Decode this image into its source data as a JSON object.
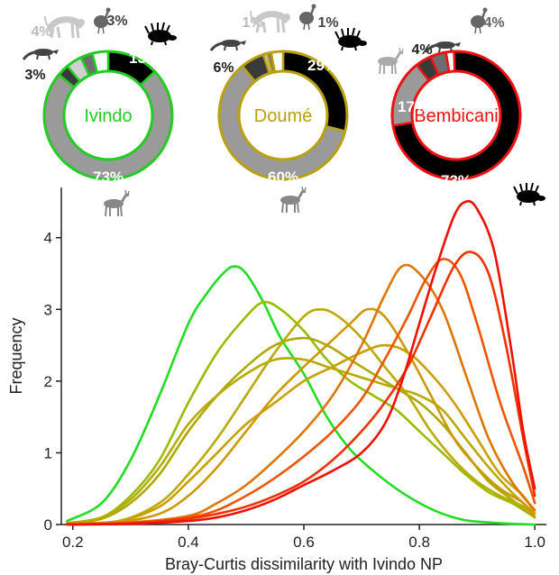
{
  "chart_data": [
    {
      "type": "pie",
      "style": "donut",
      "label": "Ivindo",
      "color": "#22cc22",
      "slices": [
        {
          "animal": "antelope-icon",
          "value": 73,
          "label": "73%",
          "fill": "#9a9a9a"
        },
        {
          "animal": "mongoose-icon",
          "value": 3,
          "label": "3%",
          "fill": "#3a3a3a"
        },
        {
          "animal": "primate-icon",
          "value": 4,
          "label": "4%",
          "fill": "#d0d0d0"
        },
        {
          "animal": "guineafowl-icon",
          "value": 3,
          "label": "3%",
          "fill": "#6e6e6e"
        },
        {
          "animal": "gap",
          "value": 4,
          "label": "",
          "fill": "#ffffff"
        },
        {
          "animal": "porcupine-icon",
          "value": 13,
          "label": "13%",
          "fill": "#000000"
        }
      ]
    },
    {
      "type": "pie",
      "style": "donut",
      "label": "Doumé",
      "color": "#b8a010",
      "slices": [
        {
          "animal": "antelope-icon",
          "value": 60,
          "label": "60%",
          "fill": "#9a9a9a"
        },
        {
          "animal": "mongoose-icon",
          "value": 6,
          "label": "6%",
          "fill": "#3a3a3a"
        },
        {
          "animal": "primate-icon",
          "value": 1,
          "label": "1%",
          "fill": "#d0d0d0"
        },
        {
          "animal": "guineafowl-icon",
          "value": 1,
          "label": "1%",
          "fill": "#6e6e6e"
        },
        {
          "animal": "gap",
          "value": 3,
          "label": "",
          "fill": "#ffffff"
        },
        {
          "animal": "porcupine-icon",
          "value": 29,
          "label": "29%",
          "fill": "#000000"
        }
      ]
    },
    {
      "type": "pie",
      "style": "donut",
      "label": "Bembicani",
      "color": "#ee1111",
      "slices": [
        {
          "animal": "porcupine-icon",
          "value": 73,
          "label": "73%",
          "fill": "#000000"
        },
        {
          "animal": "antelope-icon",
          "value": 17,
          "label": "17%",
          "fill": "#9a9a9a"
        },
        {
          "animal": "mongoose-icon",
          "value": 4,
          "label": "4%",
          "fill": "#3a3a3a"
        },
        {
          "animal": "guineafowl-icon",
          "value": 4,
          "label": "4%",
          "fill": "#6e6e6e"
        },
        {
          "animal": "gap",
          "value": 2,
          "label": "",
          "fill": "#ffffff"
        }
      ]
    },
    {
      "type": "line",
      "title": "",
      "xlabel": "Bray-Curtis dissimilarity with Ivindo NP",
      "ylabel": "Frequency",
      "xlim": [
        0.18,
        1.02
      ],
      "ylim": [
        0,
        4.7
      ],
      "xticks": [
        "0.2",
        "0.4",
        "0.6",
        "0.8",
        "1.0"
      ],
      "yticks": [
        "0",
        "1",
        "2",
        "3",
        "4"
      ],
      "grid": false,
      "legend": "none",
      "series": [
        {
          "color": "#22dd22",
          "x": [
            0.19,
            0.25,
            0.3,
            0.35,
            0.4,
            0.43,
            0.46,
            0.48,
            0.5,
            0.53,
            0.56,
            0.6,
            0.64,
            0.68,
            0.72,
            0.76,
            0.8,
            0.84,
            0.88,
            0.92,
            0.96,
            1.0
          ],
          "y": [
            0.05,
            0.3,
            0.9,
            1.8,
            2.8,
            3.2,
            3.5,
            3.6,
            3.5,
            3.1,
            2.6,
            2.1,
            1.5,
            1.05,
            0.75,
            0.5,
            0.3,
            0.15,
            0.06,
            0.03,
            0.01,
            0
          ]
        },
        {
          "color": "#99bb00",
          "x": [
            0.19,
            0.25,
            0.3,
            0.35,
            0.4,
            0.45,
            0.5,
            0.53,
            0.56,
            0.6,
            0.64,
            0.68,
            0.72,
            0.76,
            0.8,
            0.84,
            0.88,
            0.92,
            0.96,
            1.0
          ],
          "y": [
            0.02,
            0.1,
            0.4,
            0.9,
            1.7,
            2.4,
            2.9,
            3.1,
            3.0,
            2.7,
            2.3,
            2.0,
            1.8,
            1.6,
            1.3,
            1.0,
            0.7,
            0.45,
            0.3,
            0.1
          ]
        },
        {
          "color": "#aaaa00",
          "x": [
            0.19,
            0.25,
            0.3,
            0.35,
            0.4,
            0.45,
            0.5,
            0.55,
            0.6,
            0.64,
            0.68,
            0.72,
            0.76,
            0.8,
            0.84,
            0.88,
            0.92,
            0.96,
            1.0
          ],
          "y": [
            0.02,
            0.08,
            0.3,
            0.7,
            1.3,
            1.8,
            2.2,
            2.5,
            2.6,
            2.5,
            2.3,
            2.1,
            1.9,
            1.7,
            1.4,
            1.0,
            0.6,
            0.35,
            0.1
          ]
        },
        {
          "color": "#b8aa00",
          "x": [
            0.19,
            0.25,
            0.3,
            0.35,
            0.4,
            0.45,
            0.5,
            0.55,
            0.6,
            0.64,
            0.68,
            0.72,
            0.76,
            0.8,
            0.84,
            0.88,
            0.92,
            0.96,
            1.0
          ],
          "y": [
            0.02,
            0.1,
            0.35,
            0.8,
            1.4,
            1.8,
            2.1,
            2.3,
            2.3,
            2.2,
            2.1,
            2.0,
            1.9,
            1.8,
            1.6,
            1.2,
            0.8,
            0.45,
            0.15
          ]
        },
        {
          "color": "#bbaa00",
          "x": [
            0.19,
            0.28,
            0.35,
            0.4,
            0.45,
            0.5,
            0.55,
            0.6,
            0.63,
            0.66,
            0.7,
            0.74,
            0.78,
            0.82,
            0.86,
            0.9,
            0.94,
            0.98,
            1.0
          ],
          "y": [
            0.01,
            0.05,
            0.3,
            0.7,
            1.2,
            1.8,
            2.4,
            2.9,
            3.0,
            2.9,
            2.6,
            2.2,
            1.8,
            1.3,
            0.9,
            0.6,
            0.4,
            0.25,
            0.1
          ]
        },
        {
          "color": "#c9a000",
          "x": [
            0.19,
            0.28,
            0.35,
            0.4,
            0.45,
            0.5,
            0.55,
            0.6,
            0.65,
            0.7,
            0.74,
            0.78,
            0.82,
            0.86,
            0.9,
            0.94,
            0.98,
            1.0
          ],
          "y": [
            0.01,
            0.05,
            0.25,
            0.6,
            1.0,
            1.4,
            1.7,
            2.0,
            2.2,
            2.4,
            2.5,
            2.4,
            2.1,
            1.7,
            1.2,
            0.7,
            0.4,
            0.15
          ]
        },
        {
          "color": "#cc9900",
          "x": [
            0.19,
            0.28,
            0.35,
            0.4,
            0.45,
            0.5,
            0.55,
            0.6,
            0.64,
            0.68,
            0.71,
            0.74,
            0.78,
            0.82,
            0.86,
            0.9,
            0.94,
            0.98,
            1.0
          ],
          "y": [
            0.01,
            0.04,
            0.15,
            0.4,
            0.8,
            1.3,
            1.8,
            2.2,
            2.5,
            2.8,
            3.0,
            2.9,
            2.4,
            1.8,
            1.2,
            0.8,
            0.5,
            0.3,
            0.1
          ]
        },
        {
          "color": "#dd7700",
          "x": [
            0.19,
            0.3,
            0.4,
            0.45,
            0.5,
            0.55,
            0.6,
            0.65,
            0.7,
            0.74,
            0.77,
            0.8,
            0.84,
            0.88,
            0.92,
            0.96,
            1.0
          ],
          "y": [
            0.01,
            0.03,
            0.12,
            0.3,
            0.55,
            0.9,
            1.3,
            1.8,
            2.5,
            3.2,
            3.6,
            3.5,
            3.0,
            2.1,
            1.2,
            0.6,
            0.2
          ]
        },
        {
          "color": "#ee5500",
          "x": [
            0.19,
            0.3,
            0.4,
            0.45,
            0.5,
            0.55,
            0.6,
            0.65,
            0.7,
            0.74,
            0.78,
            0.81,
            0.84,
            0.87,
            0.9,
            0.94,
            0.98,
            1.0
          ],
          "y": [
            0.0,
            0.02,
            0.1,
            0.2,
            0.4,
            0.65,
            0.95,
            1.3,
            1.75,
            2.3,
            2.9,
            3.4,
            3.7,
            3.5,
            2.8,
            1.7,
            0.8,
            0.3
          ]
        },
        {
          "color": "#ee3300",
          "x": [
            0.19,
            0.3,
            0.4,
            0.45,
            0.5,
            0.55,
            0.6,
            0.65,
            0.7,
            0.74,
            0.78,
            0.82,
            0.86,
            0.89,
            0.92,
            0.95,
            0.98,
            1.0
          ],
          "y": [
            0.0,
            0.02,
            0.08,
            0.15,
            0.25,
            0.4,
            0.6,
            0.9,
            1.3,
            1.7,
            2.2,
            2.9,
            3.6,
            3.8,
            3.5,
            2.5,
            1.2,
            0.4
          ]
        },
        {
          "color": "#ee1100",
          "x": [
            0.19,
            0.3,
            0.4,
            0.45,
            0.5,
            0.55,
            0.6,
            0.65,
            0.7,
            0.74,
            0.77,
            0.8,
            0.83,
            0.86,
            0.88,
            0.9,
            0.93,
            0.96,
            0.98,
            1.0
          ],
          "y": [
            0.0,
            0.01,
            0.05,
            0.1,
            0.2,
            0.35,
            0.55,
            0.75,
            1.0,
            1.4,
            2.0,
            2.8,
            3.6,
            4.3,
            4.5,
            4.4,
            3.8,
            2.4,
            1.3,
            0.5
          ]
        }
      ]
    }
  ]
}
